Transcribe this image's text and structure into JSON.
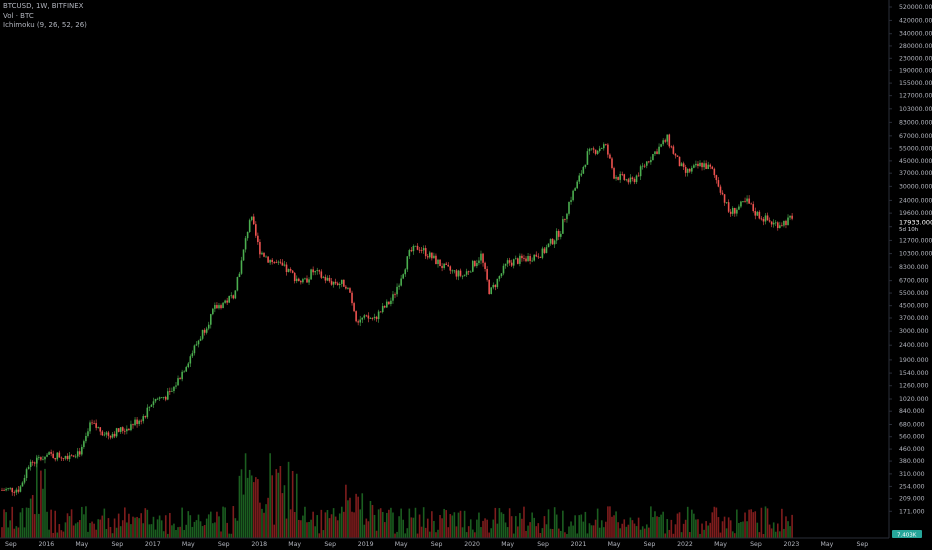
{
  "header": {
    "symbol_line": "BTCUSD, 1W, BITFINEX",
    "volume_line": "Vol · BTC",
    "indicator_line": "Ichimoku (9, 26, 52, 26)"
  },
  "price_tag": {
    "price": "17933.000",
    "countdown": "5d 10h"
  },
  "volume_tag": {
    "value": "7.403K"
  },
  "colors": {
    "up": "#4caf50",
    "down": "#ef5350",
    "vol_up": "#1b5e20",
    "vol_down": "#7f1d1d",
    "price_tag": "#26a69a",
    "background": "#000000",
    "axis_text": "#b2b5be"
  },
  "chart_data": {
    "type": "candlestick",
    "title": "BTCUSD, 1W, BITFINEX",
    "y_scale": "log",
    "ylim": [
      125,
      520000
    ],
    "y_ticks": [
      "520000.000",
      "420000.000",
      "340000.000",
      "280000.000",
      "230000.000",
      "190000.000",
      "155000.000",
      "127000.000",
      "103000.000",
      "83000.000",
      "67000.000",
      "55000.000",
      "45000.000",
      "37000.000",
      "30000.000",
      "24000.000",
      "19600.000",
      "15800.000",
      "12700.000",
      "10300.000",
      "8300.000",
      "6700.000",
      "5500.000",
      "4500.000",
      "3700.000",
      "3000.000",
      "2400.000",
      "1900.000",
      "1540.000",
      "1260.000",
      "1020.000",
      "840.000",
      "680.000",
      "560.000",
      "460.000",
      "380.000",
      "310.000",
      "254.000",
      "209.000",
      "171.000"
    ],
    "x_ticks": [
      "Sep",
      "2016",
      "May",
      "Sep",
      "2017",
      "May",
      "Sep",
      "2018",
      "May",
      "Sep",
      "2019",
      "May",
      "Sep",
      "2020",
      "May",
      "Sep",
      "2021",
      "May",
      "Sep",
      "2022",
      "May",
      "Sep",
      "2023",
      "May",
      "Sep"
    ],
    "xlim": [
      "2015-08",
      "2023-12"
    ],
    "last_price": 17933,
    "weekly_closes": [
      [
        "2015-08",
        240
      ],
      [
        "2015-10",
        245
      ],
      [
        "2015-11",
        360
      ],
      [
        "2016-01",
        415
      ],
      [
        "2016-03",
        415
      ],
      [
        "2016-05",
        450
      ],
      [
        "2016-06",
        680
      ],
      [
        "2016-08",
        580
      ],
      [
        "2016-10",
        640
      ],
      [
        "2016-12",
        780
      ],
      [
        "2017-01",
        1000
      ],
      [
        "2017-03",
        1100
      ],
      [
        "2017-05",
        1900
      ],
      [
        "2017-06",
        2500
      ],
      [
        "2017-08",
        4300
      ],
      [
        "2017-10",
        5200
      ],
      [
        "2017-11",
        9000
      ],
      [
        "2017-12",
        19000
      ],
      [
        "2018-01",
        11000
      ],
      [
        "2018-02",
        9500
      ],
      [
        "2018-04",
        8000
      ],
      [
        "2018-06",
        6400
      ],
      [
        "2018-07",
        7800
      ],
      [
        "2018-09",
        6600
      ],
      [
        "2018-11",
        6300
      ],
      [
        "2018-12",
        3600
      ],
      [
        "2019-02",
        3700
      ],
      [
        "2019-04",
        5000
      ],
      [
        "2019-06",
        10500
      ],
      [
        "2019-07",
        11500
      ],
      [
        "2019-08",
        10200
      ],
      [
        "2019-10",
        8100
      ],
      [
        "2019-12",
        7200
      ],
      [
        "2020-02",
        10000
      ],
      [
        "2020-03",
        5500
      ],
      [
        "2020-05",
        8900
      ],
      [
        "2020-07",
        9500
      ],
      [
        "2020-09",
        10500
      ],
      [
        "2020-11",
        15000
      ],
      [
        "2020-12",
        24000
      ],
      [
        "2021-01",
        33000
      ],
      [
        "2021-02",
        50000
      ],
      [
        "2021-04",
        58000
      ],
      [
        "2021-05",
        36000
      ],
      [
        "2021-07",
        32000
      ],
      [
        "2021-09",
        47000
      ],
      [
        "2021-11",
        64000
      ],
      [
        "2021-12",
        47000
      ],
      [
        "2022-01",
        37000
      ],
      [
        "2022-03",
        43000
      ],
      [
        "2022-04",
        39000
      ],
      [
        "2022-05",
        29000
      ],
      [
        "2022-06",
        19500
      ],
      [
        "2022-08",
        23500
      ],
      [
        "2022-09",
        19500
      ],
      [
        "2022-11",
        16500
      ],
      [
        "2022-12",
        16800
      ],
      [
        "2023-01",
        17933
      ]
    ]
  }
}
